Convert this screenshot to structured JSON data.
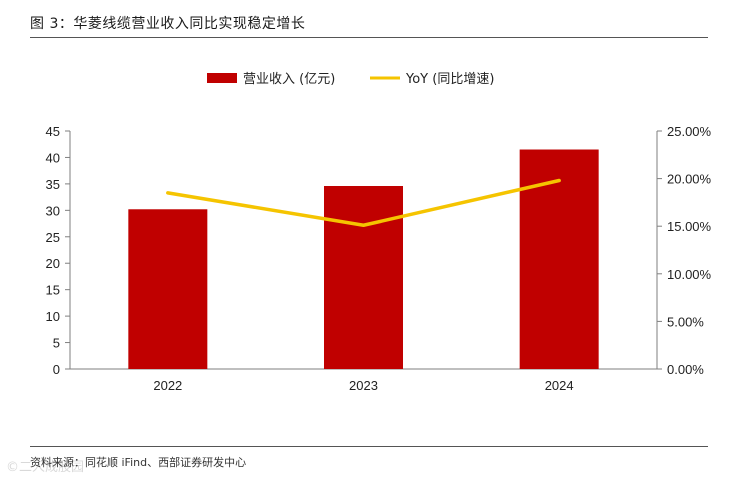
{
  "figure": {
    "title": "图 3：华菱线缆营业收入同比实现稳定增长",
    "source": "资料来源：同花顺 iFind、西部证券研发中心",
    "watermark": "©二人成股园"
  },
  "chart_data": {
    "type": "bar",
    "categories": [
      "2022",
      "2023",
      "2024"
    ],
    "series": [
      {
        "name": "营业收入 (亿元)",
        "type": "bar",
        "axis": "left",
        "color": "#c00000",
        "values": [
          30.2,
          34.6,
          41.5
        ]
      },
      {
        "name": "YoY (同比增速)",
        "type": "line",
        "axis": "right",
        "color": "#f5c400",
        "values": [
          18.5,
          15.1,
          19.8
        ]
      }
    ],
    "left_axis": {
      "ylim": [
        0,
        45
      ],
      "ticks": [
        "0",
        "5",
        "10",
        "15",
        "20",
        "25",
        "30",
        "35",
        "40",
        "45"
      ]
    },
    "right_axis": {
      "ylim": [
        0,
        25
      ],
      "ticks": [
        "0.00%",
        "5.00%",
        "10.00%",
        "15.00%",
        "20.00%",
        "25.00%"
      ]
    },
    "legend_position": "top-center",
    "grid": false
  }
}
